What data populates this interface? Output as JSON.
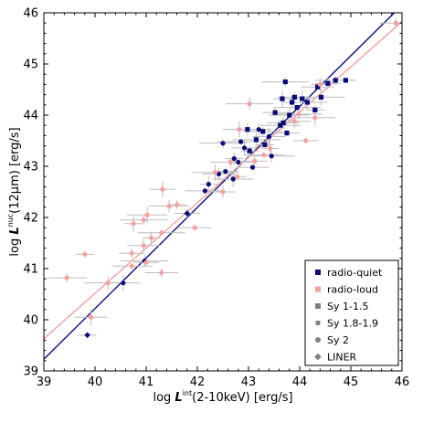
{
  "chart_data": {
    "type": "scatter",
    "xlabel": {
      "prefix": "log ",
      "symbol": "L",
      "sup": "int",
      "suffix": "(2-10keV) [erg/s]"
    },
    "ylabel": {
      "prefix": "log ",
      "symbol": "L",
      "sup": "nuc",
      "suffix": "(12µm) [erg/s]"
    },
    "xlim": [
      39,
      46
    ],
    "ylim": [
      39,
      46
    ],
    "xticks": [
      "39",
      "40",
      "41",
      "42",
      "43",
      "44",
      "45",
      "46"
    ],
    "yticks": [
      "39",
      "40",
      "41",
      "42",
      "43",
      "44",
      "45",
      "46"
    ],
    "legend_position": "bottom-right",
    "legend": [
      {
        "label": "radio-quiet",
        "marker": "square",
        "color": "#0b0b7a"
      },
      {
        "label": "radio-loud",
        "marker": "square",
        "color": "#f5a0a0"
      },
      {
        "label": "Sy 1-1.5",
        "marker": "square",
        "color": "#7f7f7f"
      },
      {
        "label": "Sy 1.8-1.9",
        "marker": "square-small",
        "color": "#7f7f7f"
      },
      {
        "label": "Sy 2",
        "marker": "circle",
        "color": "#7f7f7f"
      },
      {
        "label": "LINER",
        "marker": "diamond",
        "color": "#7f7f7f"
      }
    ],
    "fit_lines": [
      {
        "color": "#0b0b7a",
        "x": [
          39,
          45.85
        ],
        "y": [
          39.23,
          46.0
        ]
      },
      {
        "color": "#f5a0a0",
        "x": [
          39,
          46
        ],
        "y": [
          39.63,
          45.83
        ]
      }
    ],
    "series": [
      {
        "color": "#0b0b7a",
        "points": [
          {
            "x": 39.85,
            "y": 39.7,
            "m": "diamond"
          },
          {
            "x": 40.55,
            "y": 40.72,
            "m": "circle"
          },
          {
            "x": 40.97,
            "y": 41.15,
            "m": "circle"
          },
          {
            "x": 41.8,
            "y": 42.08,
            "m": "diamond"
          },
          {
            "x": 42.15,
            "y": 42.52,
            "m": "circle"
          },
          {
            "x": 42.22,
            "y": 42.65,
            "m": "circle"
          },
          {
            "x": 42.42,
            "y": 42.85,
            "m": "circle"
          },
          {
            "x": 42.5,
            "y": 43.45,
            "m": "circle"
          },
          {
            "x": 42.55,
            "y": 42.9,
            "m": "circle"
          },
          {
            "x": 42.7,
            "y": 42.75,
            "m": "circle"
          },
          {
            "x": 42.72,
            "y": 43.15,
            "m": "circle"
          },
          {
            "x": 42.8,
            "y": 43.08,
            "m": "circle"
          },
          {
            "x": 42.85,
            "y": 43.48,
            "m": "circle"
          },
          {
            "x": 42.92,
            "y": 43.36,
            "m": "circle"
          },
          {
            "x": 42.98,
            "y": 43.72,
            "m": "square"
          },
          {
            "x": 43.02,
            "y": 43.3,
            "m": "square"
          },
          {
            "x": 43.08,
            "y": 42.98,
            "m": "circle"
          },
          {
            "x": 43.15,
            "y": 43.52,
            "m": "square"
          },
          {
            "x": 43.2,
            "y": 43.72,
            "m": "circle"
          },
          {
            "x": 43.28,
            "y": 43.68,
            "m": "square"
          },
          {
            "x": 43.32,
            "y": 43.42,
            "m": "square"
          },
          {
            "x": 43.4,
            "y": 43.58,
            "m": "circle"
          },
          {
            "x": 43.45,
            "y": 43.2,
            "m": "circle"
          },
          {
            "x": 43.52,
            "y": 44.05,
            "m": "square"
          },
          {
            "x": 43.62,
            "y": 43.8,
            "m": "square"
          },
          {
            "x": 43.66,
            "y": 44.32,
            "m": "square"
          },
          {
            "x": 43.68,
            "y": 43.85,
            "m": "square"
          },
          {
            "x": 43.72,
            "y": 44.65,
            "m": "square"
          },
          {
            "x": 43.75,
            "y": 43.65,
            "m": "square"
          },
          {
            "x": 43.8,
            "y": 44.0,
            "m": "square"
          },
          {
            "x": 43.85,
            "y": 44.25,
            "m": "square"
          },
          {
            "x": 43.9,
            "y": 44.35,
            "m": "square"
          },
          {
            "x": 43.95,
            "y": 44.15,
            "m": "square"
          },
          {
            "x": 44.05,
            "y": 44.32,
            "m": "square"
          },
          {
            "x": 44.15,
            "y": 44.25,
            "m": "square"
          },
          {
            "x": 44.3,
            "y": 44.1,
            "m": "square"
          },
          {
            "x": 44.35,
            "y": 44.55,
            "m": "square"
          },
          {
            "x": 44.42,
            "y": 44.35,
            "m": "square"
          },
          {
            "x": 44.55,
            "y": 44.62,
            "m": "square"
          },
          {
            "x": 44.7,
            "y": 44.68,
            "m": "square"
          },
          {
            "x": 44.9,
            "y": 44.68,
            "m": "square"
          }
        ]
      },
      {
        "color": "#f5a0a0",
        "points": [
          {
            "x": 39.45,
            "y": 40.82,
            "m": "diamond"
          },
          {
            "x": 39.8,
            "y": 41.28,
            "m": "diamond"
          },
          {
            "x": 39.92,
            "y": 40.05,
            "m": "diamond"
          },
          {
            "x": 40.25,
            "y": 40.72,
            "m": "circle"
          },
          {
            "x": 40.72,
            "y": 41.3,
            "m": "diamond"
          },
          {
            "x": 40.72,
            "y": 41.05,
            "m": "diamond"
          },
          {
            "x": 40.75,
            "y": 41.88,
            "m": "diamond"
          },
          {
            "x": 40.95,
            "y": 41.45,
            "m": "diamond"
          },
          {
            "x": 40.95,
            "y": 41.95,
            "m": "diamond"
          },
          {
            "x": 41.0,
            "y": 41.12,
            "m": "diamond"
          },
          {
            "x": 41.02,
            "y": 42.05,
            "m": "diamond"
          },
          {
            "x": 41.1,
            "y": 41.6,
            "m": "diamond"
          },
          {
            "x": 41.3,
            "y": 40.92,
            "m": "diamond"
          },
          {
            "x": 41.3,
            "y": 41.7,
            "m": "diamond"
          },
          {
            "x": 41.32,
            "y": 42.55,
            "m": "diamond"
          },
          {
            "x": 41.45,
            "y": 42.22,
            "m": "circle"
          },
          {
            "x": 41.6,
            "y": 42.25,
            "m": "diamond"
          },
          {
            "x": 41.95,
            "y": 41.8,
            "m": "diamond"
          },
          {
            "x": 42.35,
            "y": 42.88,
            "m": "diamond"
          },
          {
            "x": 42.5,
            "y": 42.5,
            "m": "circle"
          },
          {
            "x": 42.65,
            "y": 43.08,
            "m": "circle"
          },
          {
            "x": 42.78,
            "y": 42.8,
            "m": "diamond"
          },
          {
            "x": 42.82,
            "y": 43.72,
            "m": "circle"
          },
          {
            "x": 43.02,
            "y": 44.22,
            "m": "circle"
          },
          {
            "x": 43.12,
            "y": 43.1,
            "m": "circle"
          },
          {
            "x": 43.3,
            "y": 43.22,
            "m": "circle"
          },
          {
            "x": 43.42,
            "y": 43.35,
            "m": "circle"
          },
          {
            "x": 43.9,
            "y": 43.88,
            "m": "diamond"
          },
          {
            "x": 43.98,
            "y": 44.02,
            "m": "diamond"
          },
          {
            "x": 44.12,
            "y": 43.5,
            "m": "diamond"
          },
          {
            "x": 44.3,
            "y": 43.95,
            "m": "diamond"
          },
          {
            "x": 44.4,
            "y": 44.6,
            "m": "circle"
          },
          {
            "x": 45.88,
            "y": 45.8,
            "m": "circle"
          }
        ]
      }
    ]
  }
}
